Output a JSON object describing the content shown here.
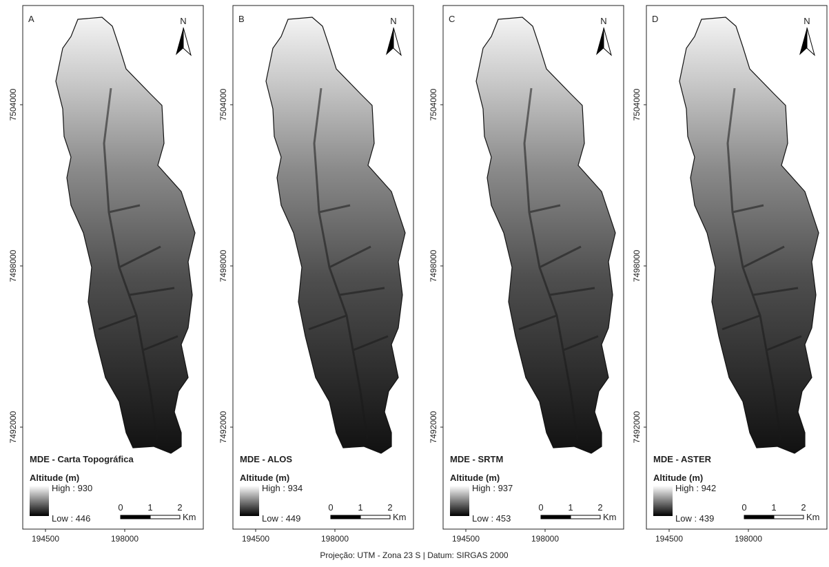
{
  "panels": [
    {
      "letter": "A",
      "north": "N",
      "title": "MDE - Carta Topográfica",
      "legend_title": "Altitude (m)",
      "high": "High : 930",
      "low": "Low : 446",
      "scale": {
        "ticks": [
          "0",
          "1",
          "2"
        ],
        "unit": "Km"
      },
      "yticks": [
        "7504000",
        "7498000",
        "7492000"
      ],
      "xticks": [
        "194500",
        "198000"
      ]
    },
    {
      "letter": "B",
      "north": "N",
      "title": "MDE - ALOS",
      "legend_title": "Altitude (m)",
      "high": "High : 934",
      "low": "Low : 449",
      "scale": {
        "ticks": [
          "0",
          "1",
          "2"
        ],
        "unit": "Km"
      },
      "yticks": [
        "7504000",
        "7498000",
        "7492000"
      ],
      "xticks": [
        "194500",
        "198000"
      ]
    },
    {
      "letter": "C",
      "north": "N",
      "title": "MDE - SRTM",
      "legend_title": "Altitude (m)",
      "high": "High : 937",
      "low": "Low : 453",
      "scale": {
        "ticks": [
          "0",
          "1",
          "2"
        ],
        "unit": "Km"
      },
      "yticks": [
        "7504000",
        "7498000",
        "7492000"
      ],
      "xticks": [
        "194500",
        "198000"
      ]
    },
    {
      "letter": "D",
      "north": "N",
      "title": "MDE - ASTER",
      "legend_title": "Altitude (m)",
      "high": "High : 942",
      "low": "Low : 439",
      "scale": {
        "ticks": [
          "0",
          "1",
          "2"
        ],
        "unit": "Km"
      },
      "yticks": [
        "7504000",
        "7498000",
        "7492000"
      ],
      "xticks": [
        "194500",
        "198000"
      ]
    }
  ],
  "footer": "Projeção: UTM - Zona 23 S | Datum: SIRGAS 2000"
}
